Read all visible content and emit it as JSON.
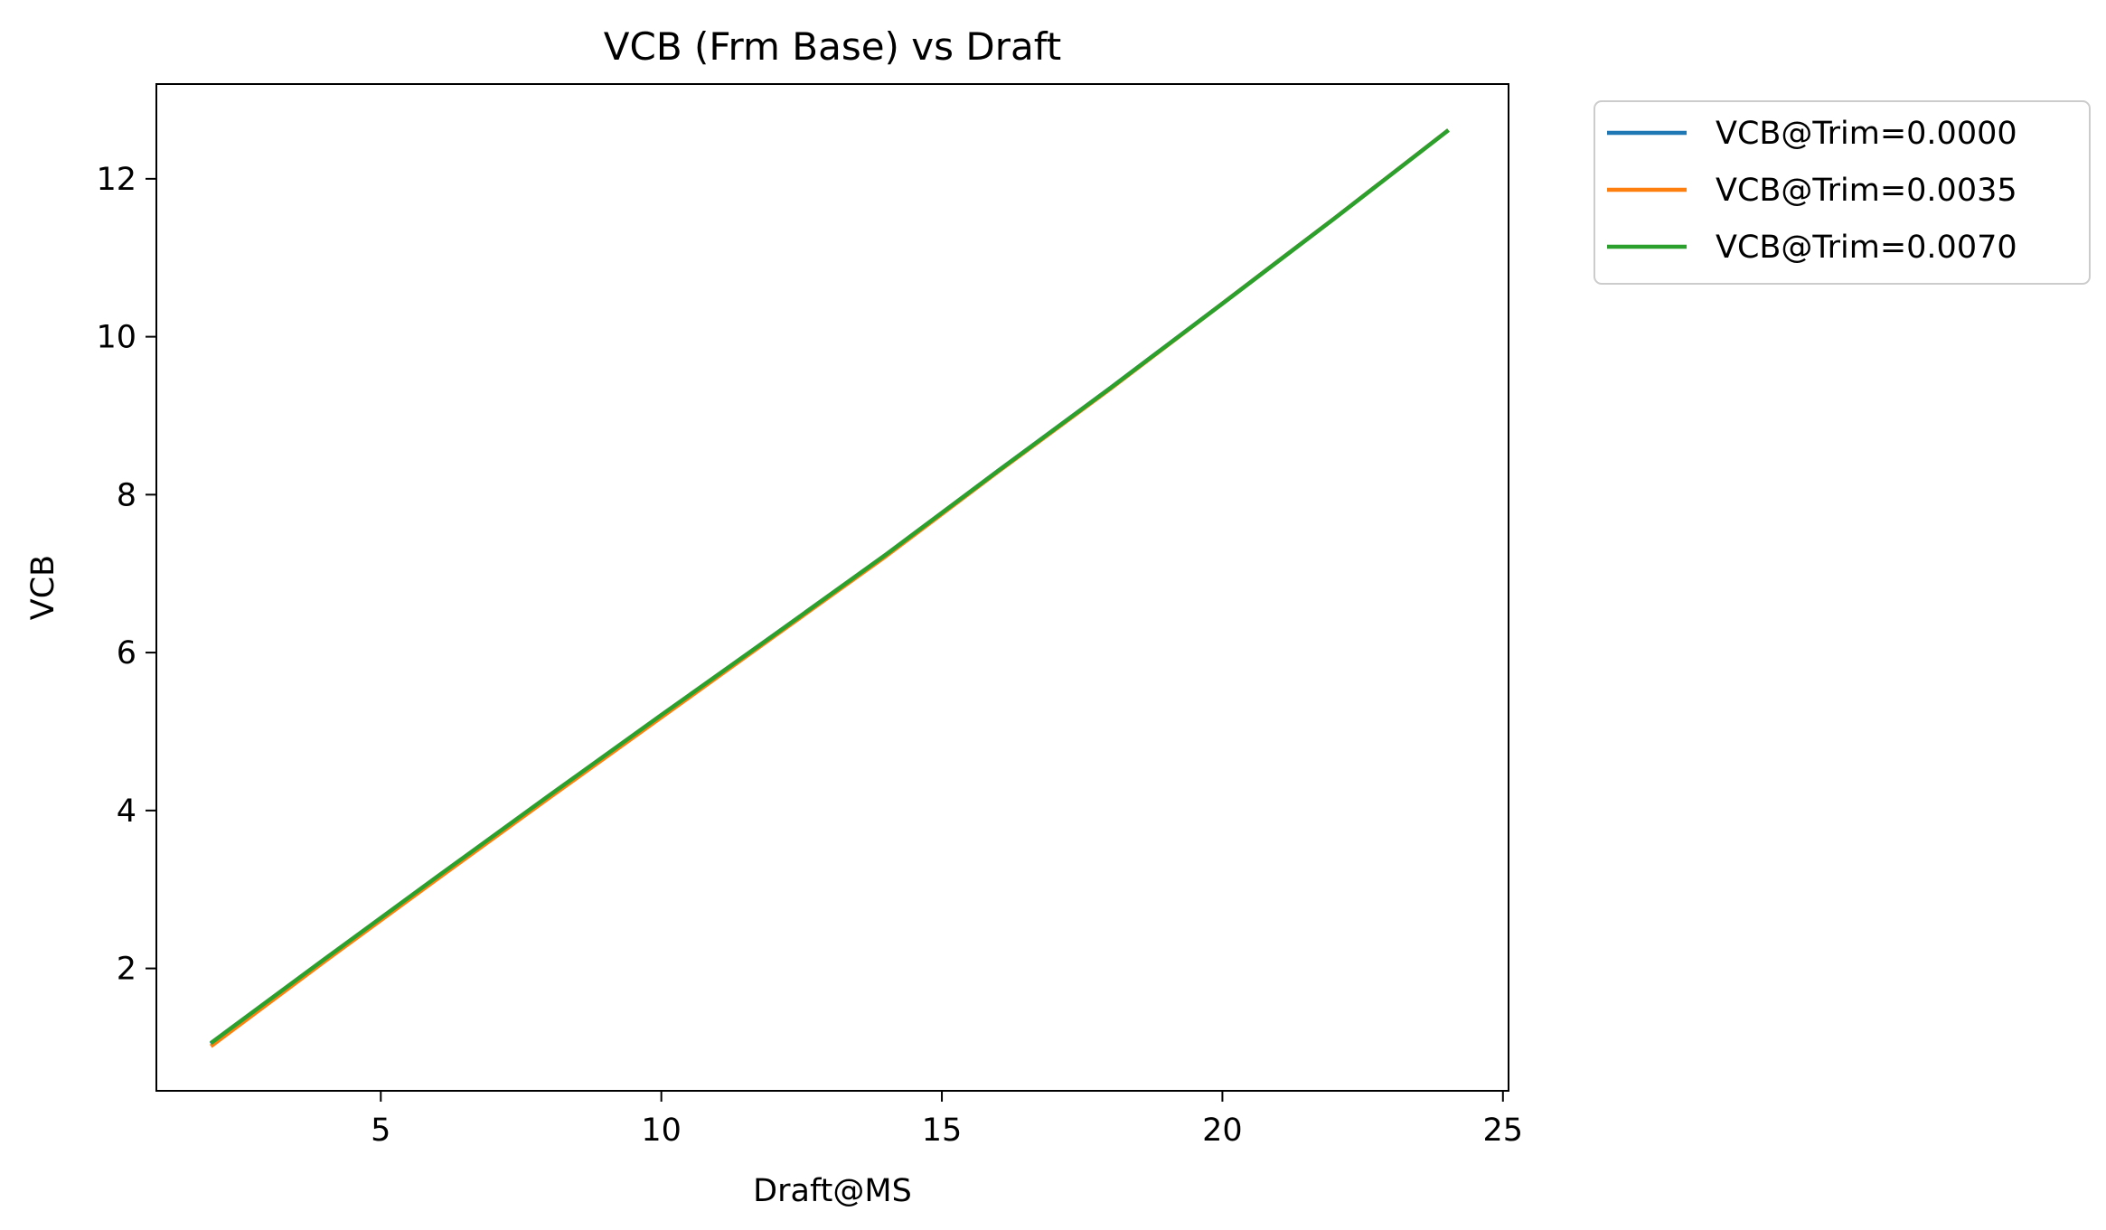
{
  "chart_data": {
    "type": "line",
    "title": "VCB (Frm Base) vs Draft",
    "xlabel": "Draft@MS",
    "ylabel": "VCB",
    "xlim": [
      1.0,
      25.1
    ],
    "ylim": [
      0.45,
      13.2
    ],
    "x_ticks": [
      5,
      10,
      15,
      20,
      25
    ],
    "y_ticks": [
      2,
      4,
      6,
      8,
      10,
      12
    ],
    "grid": false,
    "legend_position": "outside-top-right",
    "x": [
      2,
      4,
      6,
      8,
      10,
      12,
      14,
      16,
      18,
      20,
      22,
      24
    ],
    "series": [
      {
        "name": "VCB@Trim=0.0000",
        "color": "#1f77b4",
        "values": [
          1.06,
          2.11,
          3.15,
          4.18,
          5.2,
          6.22,
          7.23,
          8.3,
          9.35,
          10.42,
          11.5,
          12.6
        ]
      },
      {
        "name": "VCB@Trim=0.0035",
        "color": "#ff7f0e",
        "values": [
          1.03,
          2.09,
          3.13,
          4.16,
          5.18,
          6.2,
          7.22,
          8.29,
          9.34,
          10.42,
          11.5,
          12.6
        ]
      },
      {
        "name": "VCB@Trim=0.0070",
        "color": "#2ca02c",
        "values": [
          1.07,
          2.12,
          3.16,
          4.19,
          5.21,
          6.22,
          7.24,
          8.3,
          9.35,
          10.42,
          11.5,
          12.6
        ]
      }
    ]
  }
}
